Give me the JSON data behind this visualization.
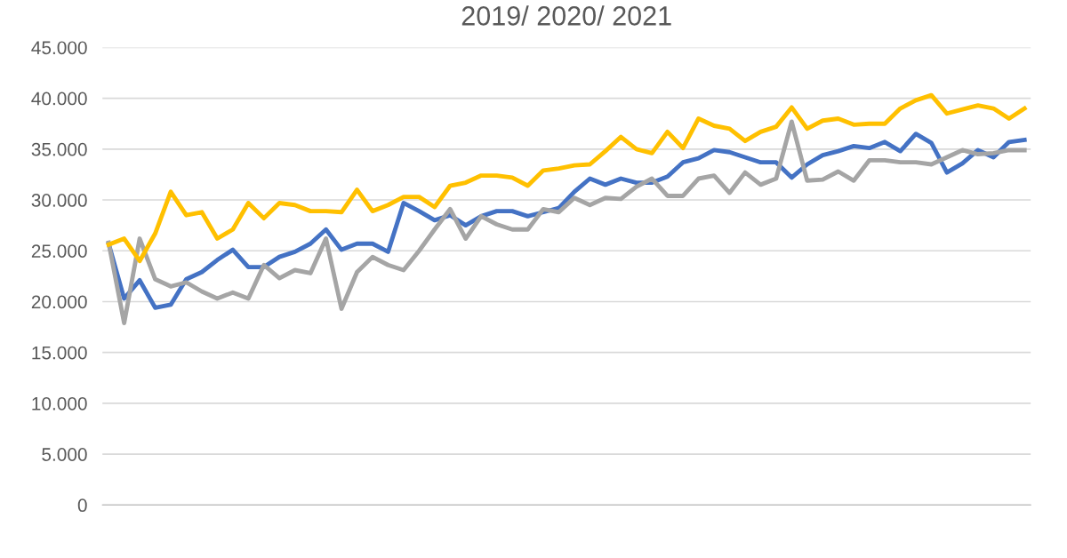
{
  "chart_data": {
    "type": "line",
    "title": "2019/ 2020/ 2021",
    "categories": [
      null,
      null,
      null,
      null,
      null,
      null,
      null,
      null,
      null,
      null,
      null,
      null,
      null,
      null,
      null,
      null,
      null,
      null,
      null,
      null,
      null,
      null,
      null,
      null,
      null,
      null,
      null,
      null,
      null,
      null,
      null,
      null,
      null,
      null,
      null,
      null,
      null,
      null,
      null,
      null,
      null,
      null,
      null,
      null,
      null,
      null,
      null,
      null,
      null,
      null,
      null,
      null,
      null,
      null,
      null,
      null,
      null,
      null,
      null,
      null
    ],
    "series": [
      {
        "color": "#4472c4",
        "values": [
          25700,
          20300,
          22100,
          19400,
          19700,
          22200,
          22900,
          24100,
          25100,
          23400,
          23400,
          24400,
          24900,
          25700,
          27100,
          25100,
          25700,
          25700,
          24900,
          29700,
          28900,
          28000,
          28500,
          27500,
          28400,
          28900,
          28900,
          28400,
          28800,
          29200,
          30800,
          32100,
          31500,
          32100,
          31700,
          31700,
          32300,
          33700,
          34100,
          34900,
          34700,
          34200,
          33700,
          33700,
          32200,
          33500,
          34400,
          34800,
          35300,
          35100,
          35700,
          34800,
          36500,
          35600,
          32700,
          33600,
          34900,
          34200,
          35700,
          35900
        ]
      },
      {
        "color": "#a5a5a5",
        "values": [
          25800,
          17900,
          26200,
          22200,
          21500,
          21900,
          21000,
          20300,
          20900,
          20300,
          23600,
          22300,
          23100,
          22800,
          26200,
          19300,
          22900,
          24400,
          23600,
          23100,
          25000,
          27100,
          29100,
          26200,
          28400,
          27600,
          27100,
          27100,
          29100,
          28800,
          30200,
          29500,
          30200,
          30100,
          31300,
          32100,
          30400,
          30400,
          32100,
          32400,
          30700,
          32700,
          31500,
          32100,
          37700,
          31900,
          32000,
          32800,
          31900,
          33900,
          33900,
          33700,
          33700,
          33500,
          34200,
          34900,
          34500,
          34600,
          34900,
          34900
        ]
      },
      {
        "color": "#ffc000",
        "values": [
          25600,
          26200,
          24000,
          26700,
          30800,
          28500,
          28800,
          26200,
          27100,
          29700,
          28200,
          29700,
          29500,
          28900,
          28900,
          28800,
          31000,
          28900,
          29500,
          30300,
          30300,
          29300,
          31400,
          31700,
          32400,
          32400,
          32200,
          31400,
          32900,
          33100,
          33400,
          33500,
          34800,
          36200,
          35000,
          34600,
          36700,
          35100,
          38000,
          37300,
          37000,
          35800,
          36700,
          37200,
          39100,
          37000,
          37800,
          38000,
          37400,
          37500,
          37500,
          39000,
          39800,
          40300,
          38500,
          38900,
          39300,
          39000,
          38000,
          39000
        ]
      }
    ],
    "ylim": [
      0,
      45000
    ],
    "yticks": [
      {
        "value": 0,
        "label": "0"
      },
      {
        "value": 5000,
        "label": "5.000"
      },
      {
        "value": 10000,
        "label": "10.000"
      },
      {
        "value": 15000,
        "label": "15.000"
      },
      {
        "value": 20000,
        "label": "20.000"
      },
      {
        "value": 25000,
        "label": "25.000"
      },
      {
        "value": 30000,
        "label": "30.000"
      },
      {
        "value": 35000,
        "label": "35.000"
      },
      {
        "value": 40000,
        "label": "40.000"
      },
      {
        "value": 45000,
        "label": "45.000"
      }
    ],
    "grid": "y",
    "tick_labels": "y",
    "marker": "none",
    "line_style": "solid",
    "legend": false
  }
}
